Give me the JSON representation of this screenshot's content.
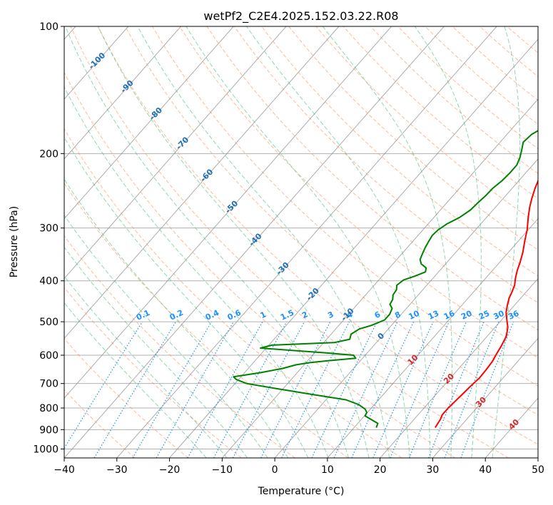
{
  "chart_data": {
    "type": "line",
    "title": "wetPf2_C2E4.2025.152.03.22.R08",
    "xlabel": "Temperature (°C)",
    "ylabel": "Pressure (hPa)",
    "xlim": [
      -40,
      50
    ],
    "ylim": [
      1050,
      100
    ],
    "y_scale": "log",
    "x_ticks": [
      -40,
      -30,
      -20,
      -10,
      0,
      10,
      20,
      30,
      40,
      50
    ],
    "y_ticks": [
      100,
      200,
      300,
      400,
      500,
      600,
      700,
      800,
      900,
      1000
    ],
    "grid": true,
    "colors": {
      "temperature": "#ff0000",
      "dewpoint": "#008000",
      "isotherm": "#808080",
      "dry_adiabat": "#ff7f50",
      "moist_adiabat": "#3cb371",
      "mixing_ratio": "#1e90ff",
      "isotherm_label": "#1f6fb4",
      "isotherm_label_warm": "#d62728"
    },
    "series": [
      {
        "key": "temperature",
        "points": [
          [
            25.4,
            890
          ],
          [
            25.2,
            870
          ],
          [
            25.0,
            850
          ],
          [
            24.6,
            830
          ],
          [
            24.6,
            800
          ],
          [
            24.8,
            770
          ],
          [
            25.0,
            740
          ],
          [
            25.2,
            710
          ],
          [
            25.5,
            680
          ],
          [
            25.4,
            650
          ],
          [
            25.2,
            620
          ],
          [
            24.8,
            600
          ],
          [
            24.3,
            570
          ],
          [
            23.6,
            540
          ],
          [
            22.4,
            515
          ],
          [
            21.0,
            495
          ],
          [
            19.6,
            475
          ],
          [
            18.7,
            458
          ],
          [
            17.8,
            440
          ],
          [
            17.3,
            425
          ],
          [
            16.7,
            410
          ],
          [
            15.7,
            395
          ],
          [
            14.7,
            378
          ],
          [
            13.9,
            362
          ],
          [
            12.7,
            342
          ],
          [
            11.2,
            322
          ],
          [
            9.8,
            303
          ],
          [
            7.9,
            283
          ],
          [
            6.5,
            268
          ],
          [
            5.4,
            255
          ],
          [
            4.3,
            241
          ],
          [
            3.4,
            228
          ],
          [
            2.8,
            217
          ],
          [
            2.5,
            206
          ],
          [
            2.3,
            197
          ],
          [
            2.1,
            188
          ],
          [
            1.8,
            178
          ],
          [
            1.3,
            170
          ],
          [
            0.8,
            163
          ],
          [
            0.1,
            156
          ],
          [
            -0.5,
            149
          ],
          [
            -0.8,
            142
          ],
          [
            -0.6,
            136
          ],
          [
            -0.3,
            130
          ],
          [
            0.1,
            123
          ],
          [
            0.4,
            117
          ],
          [
            1.0,
            111
          ],
          [
            1.6,
            105
          ],
          [
            2.2,
            100
          ]
        ]
      },
      {
        "key": "dewpoint",
        "points": [
          [
            14.2,
            890
          ],
          [
            13.8,
            870
          ],
          [
            11.7,
            850
          ],
          [
            10.1,
            835
          ],
          [
            9.9,
            820
          ],
          [
            9.0,
            805
          ],
          [
            7.0,
            785
          ],
          [
            3.8,
            765
          ],
          [
            -2.8,
            745
          ],
          [
            -11.2,
            720
          ],
          [
            -17.8,
            700
          ],
          [
            -20.4,
            685
          ],
          [
            -21.4,
            675
          ],
          [
            -17.0,
            660
          ],
          [
            -13.5,
            645
          ],
          [
            -11.5,
            632
          ],
          [
            -9.4,
            625
          ],
          [
            -6.0,
            618
          ],
          [
            -1.3,
            610
          ],
          [
            -2.2,
            600
          ],
          [
            -8.0,
            592
          ],
          [
            -15.0,
            584
          ],
          [
            -21.1,
            577
          ],
          [
            -19.4,
            568
          ],
          [
            -8.0,
            560
          ],
          [
            -5.6,
            550
          ],
          [
            -6.2,
            535
          ],
          [
            -5.5,
            520
          ],
          [
            -3.8,
            510
          ],
          [
            -2.2,
            495
          ],
          [
            -2.2,
            480
          ],
          [
            -2.7,
            465
          ],
          [
            -3.8,
            455
          ],
          [
            -4.1,
            443
          ],
          [
            -4.8,
            432
          ],
          [
            -5.0,
            420
          ],
          [
            -5.7,
            410
          ],
          [
            -5.3,
            398
          ],
          [
            -3.8,
            390
          ],
          [
            -2.5,
            381
          ],
          [
            -3.0,
            373
          ],
          [
            -4.6,
            365
          ],
          [
            -5.6,
            356
          ],
          [
            -6.1,
            345
          ],
          [
            -6.6,
            334
          ],
          [
            -7.0,
            322
          ],
          [
            -7.3,
            312
          ],
          [
            -7.1,
            303
          ],
          [
            -6.4,
            293
          ],
          [
            -5.1,
            283
          ],
          [
            -4.3,
            272
          ],
          [
            -4.1,
            262
          ],
          [
            -3.8,
            252
          ],
          [
            -3.7,
            242
          ],
          [
            -3.2,
            232
          ],
          [
            -3.0,
            222
          ],
          [
            -3.0,
            213
          ],
          [
            -3.7,
            204
          ],
          [
            -4.6,
            196
          ],
          [
            -5.6,
            188
          ],
          [
            -5.3,
            180
          ],
          [
            -3.9,
            172
          ],
          [
            -2.9,
            165
          ],
          [
            -2.3,
            158
          ],
          [
            -1.9,
            150
          ],
          [
            -1.8,
            142
          ],
          [
            -1.5,
            134
          ],
          [
            -1.0,
            127
          ],
          [
            -0.4,
            120
          ],
          [
            -0.3,
            113
          ],
          [
            0.3,
            107
          ],
          [
            1.3,
            101
          ],
          [
            1.7,
            100
          ]
        ]
      }
    ],
    "isotherm_labels": [
      "-100",
      "-90",
      "-80",
      "-70",
      "-60",
      "-50",
      "-40",
      "-30",
      "-20",
      "-10",
      "0",
      "10",
      "20",
      "30",
      "40"
    ],
    "mixing_ratio_labels": [
      "0.1",
      "0.2",
      "0.4",
      "0.6",
      "1",
      "1.5",
      "2",
      "3",
      "4",
      "6",
      "8",
      "10",
      "13",
      "16",
      "20",
      "25",
      "30",
      "36"
    ]
  }
}
